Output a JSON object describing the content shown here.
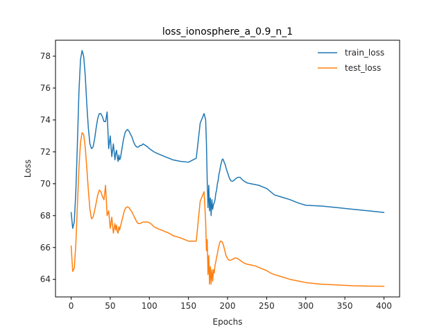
{
  "chart_data": {
    "type": "line",
    "title": "loss_ionosphere_a_0.9_n_1",
    "xlabel": "Epochs",
    "ylabel": "Loss",
    "xlim": [
      -20,
      420
    ],
    "ylim": [
      62.9,
      79.0
    ],
    "xticks": [
      0,
      50,
      100,
      150,
      200,
      250,
      300,
      350,
      400
    ],
    "yticks": [
      64,
      66,
      68,
      70,
      72,
      74,
      76,
      78
    ],
    "grid": false,
    "legend_position": "top-right",
    "series": [
      {
        "name": "train_loss",
        "color": "#1f77b4",
        "x": [
          0,
          2,
          4,
          6,
          8,
          10,
          12,
          14,
          16,
          18,
          20,
          22,
          24,
          26,
          28,
          30,
          32,
          34,
          36,
          38,
          40,
          42,
          44,
          46,
          48,
          50,
          52,
          54,
          56,
          57,
          58,
          59,
          60,
          61,
          62,
          63,
          64,
          65,
          66,
          67,
          68,
          69,
          70,
          72,
          74,
          76,
          78,
          80,
          82,
          84,
          86,
          88,
          90,
          92,
          95,
          98,
          100,
          103,
          106,
          110,
          115,
          120,
          125,
          130,
          140,
          150,
          160,
          165,
          170,
          172,
          173,
          174,
          175,
          176,
          177,
          178,
          179,
          180,
          181,
          182,
          183,
          184,
          185,
          186,
          187,
          188,
          189,
          190,
          191,
          192,
          193,
          194,
          195,
          196,
          197,
          198,
          200,
          202,
          204,
          206,
          208,
          210,
          213,
          216,
          220,
          225,
          230,
          235,
          240,
          245,
          250,
          255,
          260,
          270,
          280,
          290,
          300,
          320,
          340,
          360,
          380,
          400
        ],
        "y": [
          68.2,
          67.2,
          67.6,
          69.5,
          72.5,
          75.8,
          77.8,
          78.35,
          78.0,
          76.8,
          75.0,
          73.5,
          72.5,
          72.2,
          72.3,
          72.8,
          73.5,
          74.1,
          74.4,
          74.4,
          74.2,
          73.9,
          73.9,
          74.5,
          72.2,
          73.0,
          71.7,
          72.5,
          71.5,
          71.9,
          72.1,
          71.7,
          71.4,
          71.8,
          71.5,
          71.6,
          71.9,
          72.2,
          72.5,
          72.8,
          73.0,
          73.2,
          73.3,
          73.4,
          73.3,
          73.1,
          72.9,
          72.6,
          72.4,
          72.3,
          72.3,
          72.4,
          72.4,
          72.5,
          72.4,
          72.3,
          72.2,
          72.1,
          72.0,
          71.9,
          71.8,
          71.7,
          71.6,
          71.5,
          71.4,
          71.35,
          71.6,
          73.8,
          74.4,
          74.0,
          72.5,
          70.2,
          68.5,
          69.9,
          68.3,
          69.1,
          68.0,
          69.0,
          68.4,
          68.7,
          68.8,
          69.0,
          69.4,
          69.6,
          70.0,
          70.2,
          70.6,
          70.8,
          71.1,
          71.3,
          71.5,
          71.55,
          71.45,
          71.3,
          71.2,
          71.0,
          70.7,
          70.4,
          70.2,
          70.15,
          70.2,
          70.3,
          70.4,
          70.4,
          70.2,
          70.05,
          70.0,
          69.95,
          69.9,
          69.8,
          69.7,
          69.5,
          69.3,
          69.15,
          69.0,
          68.8,
          68.65,
          68.6,
          68.5,
          68.4,
          68.3,
          68.2
        ],
        "y_note": ""
      },
      {
        "name": "test_loss",
        "color": "#ff7f0e",
        "x": [
          0,
          2,
          4,
          6,
          8,
          10,
          12,
          14,
          16,
          18,
          20,
          22,
          24,
          26,
          28,
          30,
          32,
          34,
          36,
          38,
          40,
          42,
          44,
          46,
          48,
          50,
          52,
          54,
          56,
          57,
          58,
          59,
          60,
          61,
          62,
          63,
          64,
          65,
          66,
          67,
          68,
          69,
          70,
          72,
          74,
          76,
          78,
          80,
          82,
          84,
          86,
          88,
          90,
          92,
          95,
          98,
          100,
          103,
          106,
          110,
          115,
          120,
          125,
          130,
          140,
          150,
          160,
          165,
          170,
          172,
          173,
          174,
          175,
          176,
          177,
          178,
          179,
          180,
          181,
          182,
          183,
          184,
          185,
          186,
          187,
          188,
          189,
          190,
          191,
          192,
          193,
          194,
          195,
          196,
          197,
          198,
          200,
          202,
          204,
          206,
          208,
          210,
          213,
          216,
          220,
          225,
          230,
          235,
          240,
          245,
          250,
          255,
          260,
          270,
          280,
          290,
          300,
          320,
          340,
          360,
          380,
          400
        ],
        "y": [
          66.1,
          64.5,
          64.7,
          66.2,
          68.6,
          71.0,
          72.6,
          73.2,
          73.1,
          72.3,
          71.0,
          69.6,
          68.4,
          67.8,
          67.9,
          68.3,
          68.8,
          69.3,
          69.6,
          69.5,
          69.2,
          69.0,
          69.9,
          68.0,
          68.3,
          67.2,
          67.9,
          66.9,
          67.5,
          67.1,
          67.4,
          67.0,
          66.9,
          67.3,
          67.1,
          67.3,
          67.5,
          67.7,
          67.9,
          68.1,
          68.3,
          68.4,
          68.5,
          68.55,
          68.5,
          68.35,
          68.2,
          68.0,
          67.8,
          67.6,
          67.5,
          67.5,
          67.55,
          67.6,
          67.6,
          67.6,
          67.55,
          67.45,
          67.3,
          67.2,
          67.1,
          67.0,
          66.9,
          66.75,
          66.6,
          66.4,
          66.4,
          68.9,
          69.5,
          67.6,
          65.8,
          66.5,
          64.3,
          65.5,
          63.7,
          64.8,
          63.7,
          64.6,
          63.9,
          64.6,
          64.4,
          64.9,
          65.1,
          65.4,
          65.6,
          65.9,
          66.1,
          66.3,
          66.4,
          66.4,
          66.35,
          66.25,
          66.1,
          65.9,
          65.7,
          65.5,
          65.3,
          65.2,
          65.2,
          65.25,
          65.3,
          65.35,
          65.3,
          65.2,
          65.05,
          64.95,
          64.9,
          64.85,
          64.75,
          64.65,
          64.55,
          64.4,
          64.3,
          64.15,
          64.0,
          63.9,
          63.8,
          63.7,
          63.65,
          63.6,
          63.58,
          63.57
        ]
      }
    ]
  }
}
